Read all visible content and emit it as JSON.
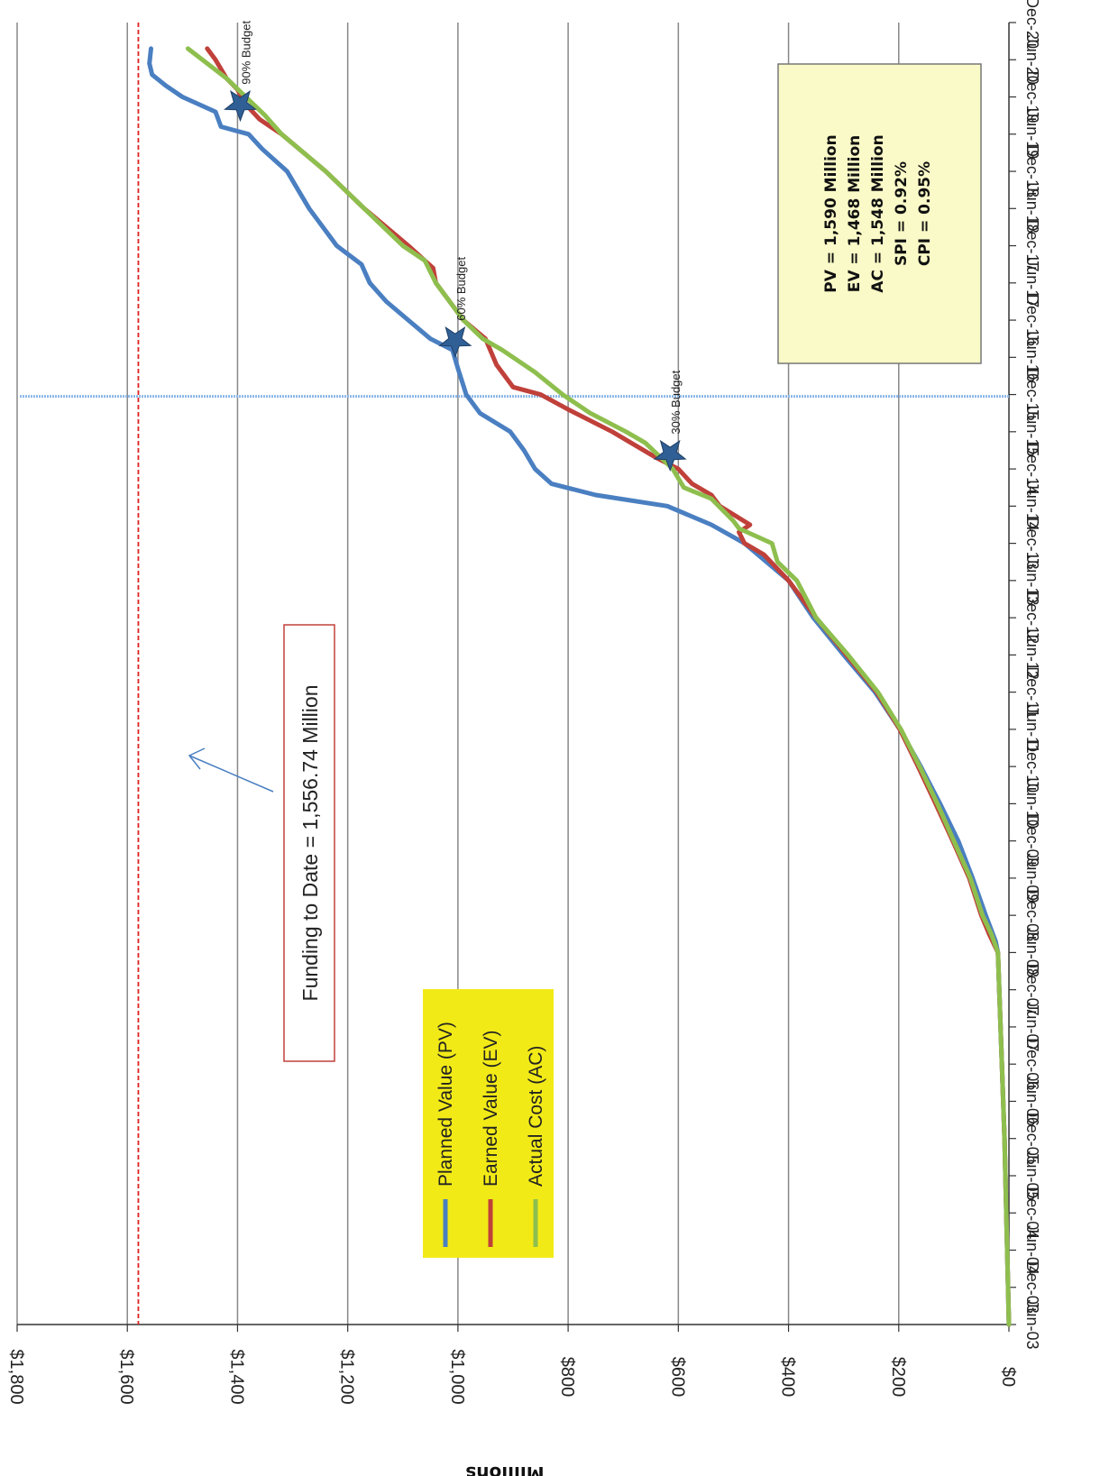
{
  "chart_data": {
    "type": "line",
    "title": "",
    "xlabel": "",
    "ylabel": "Millions",
    "x_ticks": [
      "Jun-03",
      "Dec-03",
      "Jun-04",
      "Dec-04",
      "Jun-05",
      "Dec-05",
      "Jun-06",
      "Dec-06",
      "Jun-07",
      "Dec-07",
      "Jun-08",
      "Dec-08",
      "Jun-09",
      "Dec-09",
      "Jun-10",
      "Dec-10",
      "Jun-11",
      "Dec-11",
      "Jun-12",
      "Dec-12",
      "Jun-13",
      "Dec-13",
      "Jun-14",
      "Dec-14",
      "Jun-15",
      "Dec-15",
      "Jun-16",
      "Dec-16",
      "Jun-17",
      "Dec-17",
      "Jun-18",
      "Dec-18",
      "Jun-19",
      "Dec-19",
      "Jun-20",
      "Dec-20"
    ],
    "y_ticks": [
      "$0",
      "$200",
      "$400",
      "$600",
      "$800",
      "$1,000",
      "$1,200",
      "$1,400",
      "$1,600",
      "$1,800"
    ],
    "ylim": [
      0,
      1800
    ],
    "grid": true,
    "series": [
      {
        "name": "Planned Value (PV)",
        "color": "#4a7fc1",
        "points": [
          [
            0,
            0
          ],
          [
            5,
            8
          ],
          [
            10,
            20
          ],
          [
            10.3,
            24
          ],
          [
            11,
            42
          ],
          [
            12,
            66
          ],
          [
            13,
            92
          ],
          [
            14,
            125
          ],
          [
            15,
            160
          ],
          [
            16,
            198
          ],
          [
            17,
            243
          ],
          [
            18,
            300
          ],
          [
            19,
            355
          ],
          [
            20,
            400
          ],
          [
            21,
            480
          ],
          [
            21.5,
            540
          ],
          [
            22,
            620
          ],
          [
            22.3,
            750
          ],
          [
            22.6,
            830
          ],
          [
            23,
            860
          ],
          [
            23.5,
            880
          ],
          [
            24,
            905
          ],
          [
            24.5,
            960
          ],
          [
            25,
            985
          ],
          [
            25.7,
            1000
          ],
          [
            26.2,
            1010
          ],
          [
            26.5,
            1050
          ],
          [
            27,
            1090
          ],
          [
            27.5,
            1130
          ],
          [
            28,
            1160
          ],
          [
            28.5,
            1175
          ],
          [
            29,
            1220
          ],
          [
            30,
            1270
          ],
          [
            31,
            1310
          ],
          [
            31.6,
            1355
          ],
          [
            32,
            1380
          ],
          [
            32.2,
            1430
          ],
          [
            32.6,
            1440
          ],
          [
            33,
            1500
          ],
          [
            33.3,
            1530
          ],
          [
            33.6,
            1555
          ],
          [
            33.9,
            1560
          ],
          [
            34.3,
            1557
          ]
        ]
      },
      {
        "name": "Earned Value (EV)",
        "color": "#c0403a",
        "points": [
          [
            0,
            0
          ],
          [
            5,
            8
          ],
          [
            10,
            20
          ],
          [
            10.5,
            36
          ],
          [
            11,
            50
          ],
          [
            12,
            72
          ],
          [
            13,
            102
          ],
          [
            14,
            133
          ],
          [
            15,
            165
          ],
          [
            16,
            198
          ],
          [
            17,
            240
          ],
          [
            18,
            295
          ],
          [
            19,
            350
          ],
          [
            20,
            400
          ],
          [
            20.7,
            445
          ],
          [
            21,
            480
          ],
          [
            21.3,
            490
          ],
          [
            21.5,
            470
          ],
          [
            22,
            525
          ],
          [
            22.3,
            540
          ],
          [
            22.6,
            575
          ],
          [
            23,
            600
          ],
          [
            23.3,
            640
          ],
          [
            24,
            720
          ],
          [
            24.6,
            800
          ],
          [
            25,
            850
          ],
          [
            25.2,
            900
          ],
          [
            25.8,
            930
          ],
          [
            26.5,
            950
          ],
          [
            27,
            990
          ],
          [
            28,
            1040
          ],
          [
            28.4,
            1045
          ],
          [
            29,
            1090
          ],
          [
            30,
            1170
          ],
          [
            31,
            1240
          ],
          [
            32,
            1320
          ],
          [
            32.4,
            1360
          ],
          [
            32.8,
            1385
          ],
          [
            33.2,
            1400
          ],
          [
            33.5,
            1420
          ],
          [
            34,
            1440
          ],
          [
            34.3,
            1455
          ]
        ]
      },
      {
        "name": "Actual Cost (AC)",
        "color": "#8ebf4e",
        "points": [
          [
            0,
            0
          ],
          [
            5,
            8
          ],
          [
            10,
            20
          ],
          [
            10.5,
            32
          ],
          [
            11,
            48
          ],
          [
            12,
            70
          ],
          [
            13,
            100
          ],
          [
            14,
            130
          ],
          [
            15,
            162
          ],
          [
            16,
            196
          ],
          [
            17,
            238
          ],
          [
            18,
            292
          ],
          [
            19,
            350
          ],
          [
            20,
            385
          ],
          [
            20.5,
            420
          ],
          [
            21,
            430
          ],
          [
            21.4,
            490
          ],
          [
            21.6,
            500
          ],
          [
            22.2,
            540
          ],
          [
            22.5,
            590
          ],
          [
            23,
            610
          ],
          [
            23.7,
            660
          ],
          [
            24,
            695
          ],
          [
            24.5,
            760
          ],
          [
            25,
            810
          ],
          [
            25.6,
            860
          ],
          [
            26.2,
            920
          ],
          [
            26.5,
            955
          ],
          [
            27,
            990
          ],
          [
            28,
            1040
          ],
          [
            28.6,
            1060
          ],
          [
            29,
            1100
          ],
          [
            30,
            1170
          ],
          [
            31,
            1240
          ],
          [
            32,
            1320
          ],
          [
            32.5,
            1350
          ],
          [
            33,
            1385
          ],
          [
            33.5,
            1420
          ],
          [
            34.3,
            1490
          ]
        ]
      }
    ],
    "reference_lines": [
      {
        "axis": "y",
        "value": 1580,
        "style": "dashed",
        "color": "#e02020"
      },
      {
        "axis": "x",
        "value": 24.95,
        "style": "dotted",
        "color": "#8cb8e8"
      }
    ],
    "markers": [
      {
        "label": "30% Budget",
        "x": 23.4,
        "y": 615
      },
      {
        "label": "60% Budget",
        "x": 26.45,
        "y": 1005
      },
      {
        "label": "90% Budget",
        "x": 32.8,
        "y": 1395
      }
    ],
    "legend": {
      "position": "bottom-center",
      "entries": [
        "Planned Value (PV)",
        "Earned Value (EV)",
        "Actual Cost (AC)"
      ],
      "background": "#f2ea17"
    },
    "stats_box": {
      "background": "#fafac8",
      "lines": [
        "PV = 1,590 Million",
        "EV = 1,468 Million",
        "AC = 1,548 Million",
        "SPI = 0.92%",
        "CPI = 0.95%"
      ]
    },
    "annotation": {
      "text": "Funding to Date = 1,556.74 Million"
    },
    "orientation": "rotated-90-clockwise"
  }
}
